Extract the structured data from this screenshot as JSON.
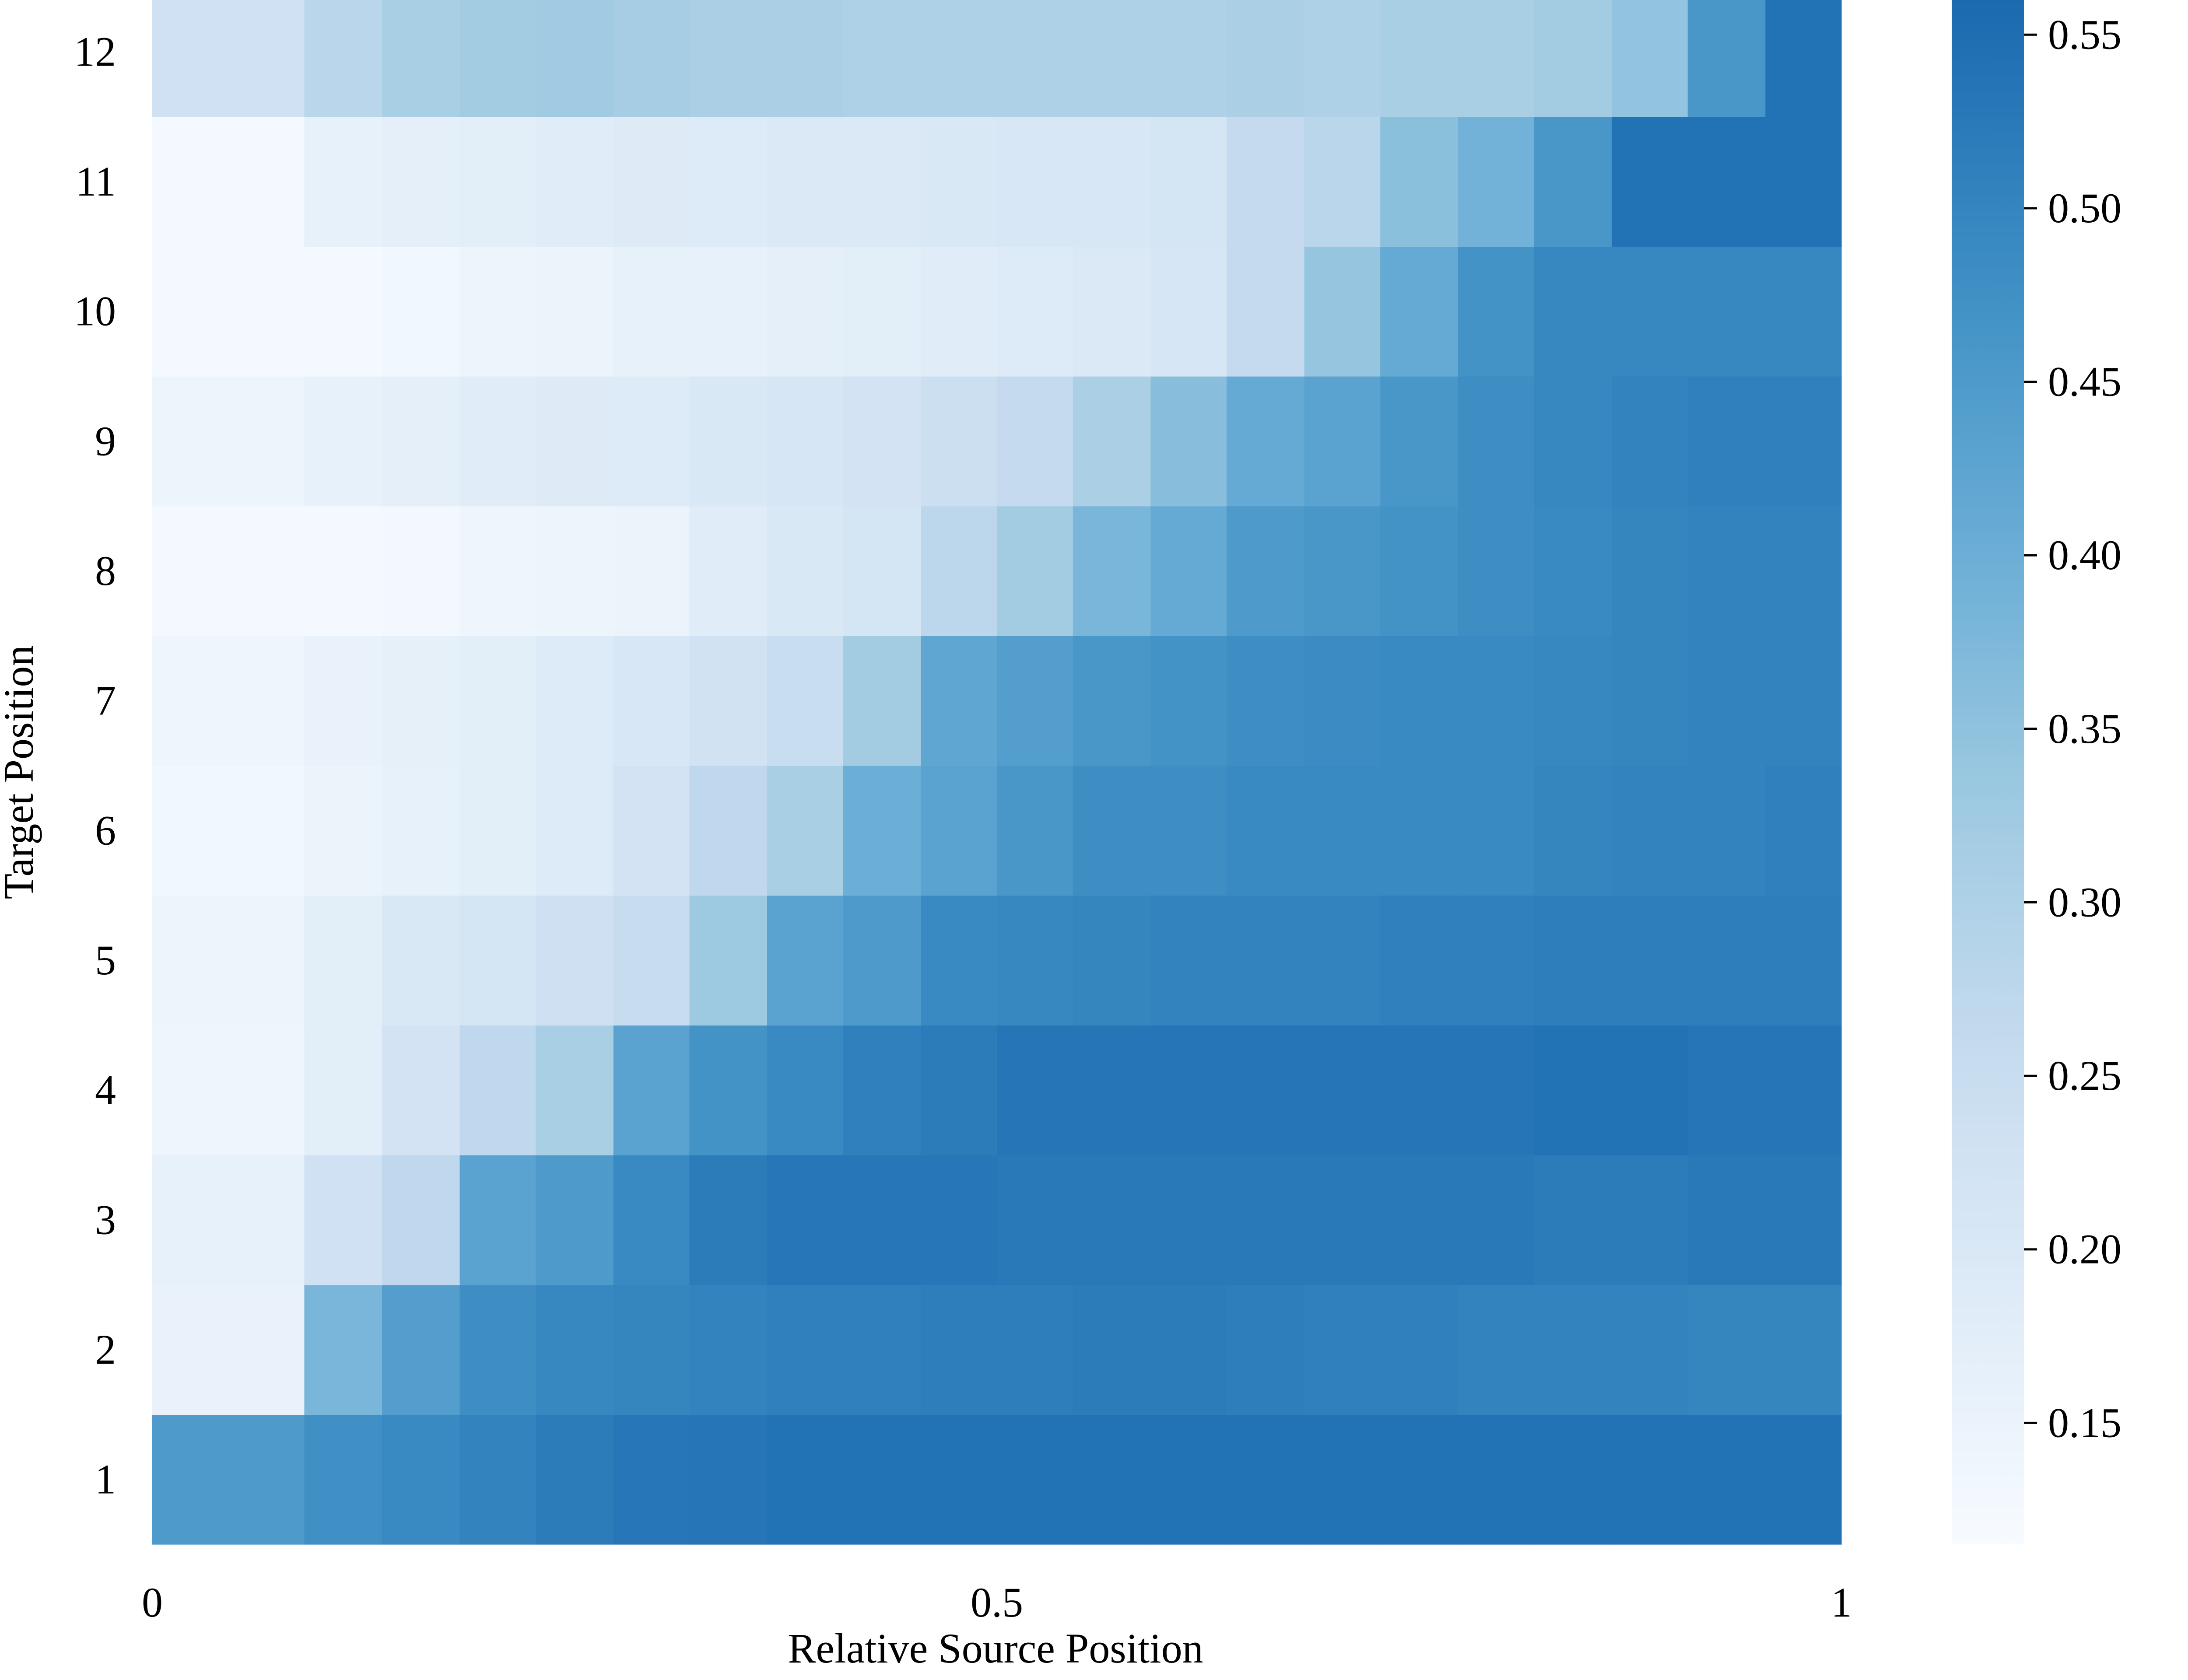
{
  "chart_data": {
    "type": "heatmap",
    "xlabel": "Relative Source Position",
    "ylabel": "Target Position",
    "x_ticks": [
      "0",
      "0.5",
      "1"
    ],
    "x_tick_values": [
      0,
      0.5,
      1
    ],
    "y_categories": [
      "1",
      "2",
      "3",
      "4",
      "5",
      "6",
      "7",
      "8",
      "9",
      "10",
      "11",
      "12"
    ],
    "x_bin_edges": [
      0,
      0.09,
      0.136,
      0.182,
      0.227,
      0.273,
      0.318,
      0.364,
      0.409,
      0.455,
      0.5,
      0.545,
      0.591,
      0.636,
      0.682,
      0.727,
      0.773,
      0.818,
      0.864,
      0.909,
      0.955,
      1.0
    ],
    "colorbar": {
      "range": [
        0.115,
        0.56
      ],
      "ticks": [
        "0.15",
        "0.20",
        "0.25",
        "0.30",
        "0.35",
        "0.40",
        "0.45",
        "0.50",
        "0.55"
      ],
      "tick_values": [
        0.15,
        0.2,
        0.25,
        0.3,
        0.35,
        0.4,
        0.45,
        0.5,
        0.55
      ],
      "colormap": "Blues"
    },
    "values": [
      [
        0.45,
        0.475,
        0.49,
        0.505,
        0.52,
        0.53,
        0.535,
        0.54,
        0.54,
        0.54,
        0.54,
        0.54,
        0.54,
        0.54,
        0.54,
        0.54,
        0.54,
        0.54,
        0.54,
        0.54,
        0.54
      ],
      [
        0.155,
        0.38,
        0.44,
        0.48,
        0.495,
        0.5,
        0.505,
        0.51,
        0.51,
        0.515,
        0.515,
        0.52,
        0.52,
        0.515,
        0.51,
        0.51,
        0.505,
        0.505,
        0.505,
        0.5,
        0.5
      ],
      [
        0.16,
        0.23,
        0.27,
        0.43,
        0.45,
        0.49,
        0.52,
        0.53,
        0.53,
        0.53,
        0.525,
        0.525,
        0.525,
        0.525,
        0.525,
        0.525,
        0.525,
        0.52,
        0.52,
        0.525,
        0.525
      ],
      [
        0.14,
        0.175,
        0.22,
        0.27,
        0.31,
        0.43,
        0.47,
        0.49,
        0.51,
        0.52,
        0.535,
        0.535,
        0.535,
        0.535,
        0.535,
        0.535,
        0.535,
        0.54,
        0.54,
        0.535,
        0.535
      ],
      [
        0.145,
        0.175,
        0.2,
        0.215,
        0.235,
        0.255,
        0.33,
        0.43,
        0.45,
        0.49,
        0.495,
        0.5,
        0.505,
        0.505,
        0.505,
        0.51,
        0.51,
        0.515,
        0.515,
        0.515,
        0.515
      ],
      [
        0.135,
        0.15,
        0.16,
        0.175,
        0.19,
        0.22,
        0.27,
        0.31,
        0.4,
        0.43,
        0.46,
        0.48,
        0.48,
        0.49,
        0.49,
        0.49,
        0.49,
        0.5,
        0.505,
        0.505,
        0.51
      ],
      [
        0.14,
        0.155,
        0.165,
        0.175,
        0.19,
        0.205,
        0.225,
        0.25,
        0.32,
        0.42,
        0.44,
        0.46,
        0.47,
        0.48,
        0.485,
        0.49,
        0.49,
        0.495,
        0.5,
        0.505,
        0.505
      ],
      [
        0.125,
        0.125,
        0.13,
        0.14,
        0.145,
        0.15,
        0.18,
        0.2,
        0.215,
        0.275,
        0.32,
        0.38,
        0.41,
        0.45,
        0.46,
        0.47,
        0.48,
        0.49,
        0.5,
        0.505,
        0.505
      ],
      [
        0.145,
        0.16,
        0.17,
        0.18,
        0.185,
        0.19,
        0.2,
        0.21,
        0.22,
        0.24,
        0.26,
        0.305,
        0.36,
        0.41,
        0.43,
        0.46,
        0.48,
        0.495,
        0.505,
        0.51,
        0.51
      ],
      [
        0.125,
        0.125,
        0.135,
        0.145,
        0.15,
        0.16,
        0.16,
        0.17,
        0.175,
        0.18,
        0.19,
        0.195,
        0.21,
        0.26,
        0.34,
        0.41,
        0.47,
        0.495,
        0.495,
        0.495,
        0.495
      ],
      [
        0.125,
        0.16,
        0.17,
        0.175,
        0.18,
        0.185,
        0.19,
        0.195,
        0.195,
        0.2,
        0.205,
        0.205,
        0.215,
        0.26,
        0.28,
        0.355,
        0.39,
        0.46,
        0.54,
        0.54,
        0.54
      ],
      [
        0.23,
        0.28,
        0.31,
        0.32,
        0.325,
        0.315,
        0.305,
        0.305,
        0.3,
        0.3,
        0.3,
        0.3,
        0.3,
        0.305,
        0.3,
        0.31,
        0.31,
        0.32,
        0.345,
        0.46,
        0.54
      ]
    ]
  }
}
